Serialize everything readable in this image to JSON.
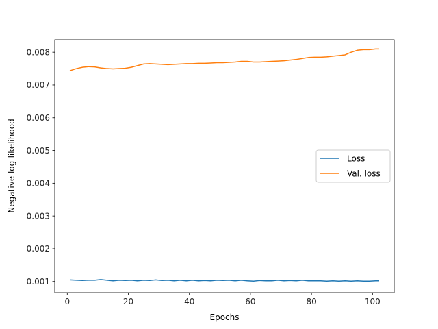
{
  "chart_data": {
    "type": "line",
    "title": "",
    "xlabel": "Epochs",
    "ylabel": "Negative log-likelihood",
    "xlim": [
      -4.1,
      107.1
    ],
    "ylim": [
      0.00066,
      0.00838
    ],
    "xticks": [
      0,
      20,
      40,
      60,
      80,
      100
    ],
    "xtick_labels": [
      "0",
      "20",
      "40",
      "60",
      "80",
      "100"
    ],
    "yticks": [
      0.001,
      0.002,
      0.003,
      0.004,
      0.005,
      0.006,
      0.007,
      0.008
    ],
    "ytick_labels": [
      "0.001",
      "0.002",
      "0.003",
      "0.004",
      "0.005",
      "0.006",
      "0.007",
      "0.008"
    ],
    "grid": false,
    "legend_position": "center-right",
    "series": [
      {
        "name": "Loss",
        "color": "#1f77b4",
        "x": [
          1,
          3,
          5,
          7,
          9,
          11,
          13,
          15,
          17,
          19,
          21,
          23,
          25,
          27,
          29,
          31,
          33,
          35,
          37,
          39,
          41,
          43,
          45,
          47,
          49,
          51,
          53,
          55,
          57,
          59,
          61,
          63,
          65,
          67,
          69,
          71,
          73,
          75,
          77,
          79,
          81,
          83,
          85,
          87,
          89,
          91,
          93,
          95,
          97,
          99,
          101,
          102
        ],
        "values": [
          0.00105,
          0.00104,
          0.00103,
          0.00104,
          0.00104,
          0.00106,
          0.00104,
          0.00102,
          0.00104,
          0.00103,
          0.00104,
          0.00102,
          0.00104,
          0.00103,
          0.00105,
          0.00103,
          0.00104,
          0.00102,
          0.00104,
          0.00102,
          0.00104,
          0.00102,
          0.00103,
          0.00102,
          0.00104,
          0.00103,
          0.00104,
          0.00102,
          0.00104,
          0.00102,
          0.00101,
          0.00103,
          0.00102,
          0.00102,
          0.00104,
          0.00102,
          0.00103,
          0.00102,
          0.00104,
          0.00102,
          0.00102,
          0.00102,
          0.00101,
          0.00102,
          0.00101,
          0.00102,
          0.00101,
          0.00102,
          0.00101,
          0.00101,
          0.00102,
          0.00102
        ]
      },
      {
        "name": "Val. loss",
        "color": "#ff7f0e",
        "x": [
          1,
          3,
          5,
          7,
          9,
          11,
          13,
          15,
          17,
          19,
          21,
          23,
          25,
          27,
          29,
          31,
          33,
          35,
          37,
          39,
          41,
          43,
          45,
          47,
          49,
          51,
          53,
          55,
          57,
          59,
          61,
          63,
          65,
          67,
          69,
          71,
          73,
          75,
          77,
          79,
          81,
          83,
          85,
          87,
          89,
          91,
          93,
          95,
          97,
          99,
          101,
          102
        ],
        "values": [
          0.00744,
          0.0075,
          0.00754,
          0.00756,
          0.00755,
          0.00752,
          0.0075,
          0.00749,
          0.0075,
          0.00751,
          0.00754,
          0.00759,
          0.00764,
          0.00765,
          0.00764,
          0.00763,
          0.00762,
          0.00763,
          0.00764,
          0.00765,
          0.00765,
          0.00766,
          0.00766,
          0.00767,
          0.00768,
          0.00768,
          0.00769,
          0.0077,
          0.00772,
          0.00772,
          0.0077,
          0.0077,
          0.00771,
          0.00772,
          0.00773,
          0.00774,
          0.00776,
          0.00778,
          0.00781,
          0.00784,
          0.00785,
          0.00785,
          0.00786,
          0.00788,
          0.0079,
          0.00792,
          0.008,
          0.00806,
          0.00808,
          0.00808,
          0.0081,
          0.0081
        ]
      }
    ]
  }
}
